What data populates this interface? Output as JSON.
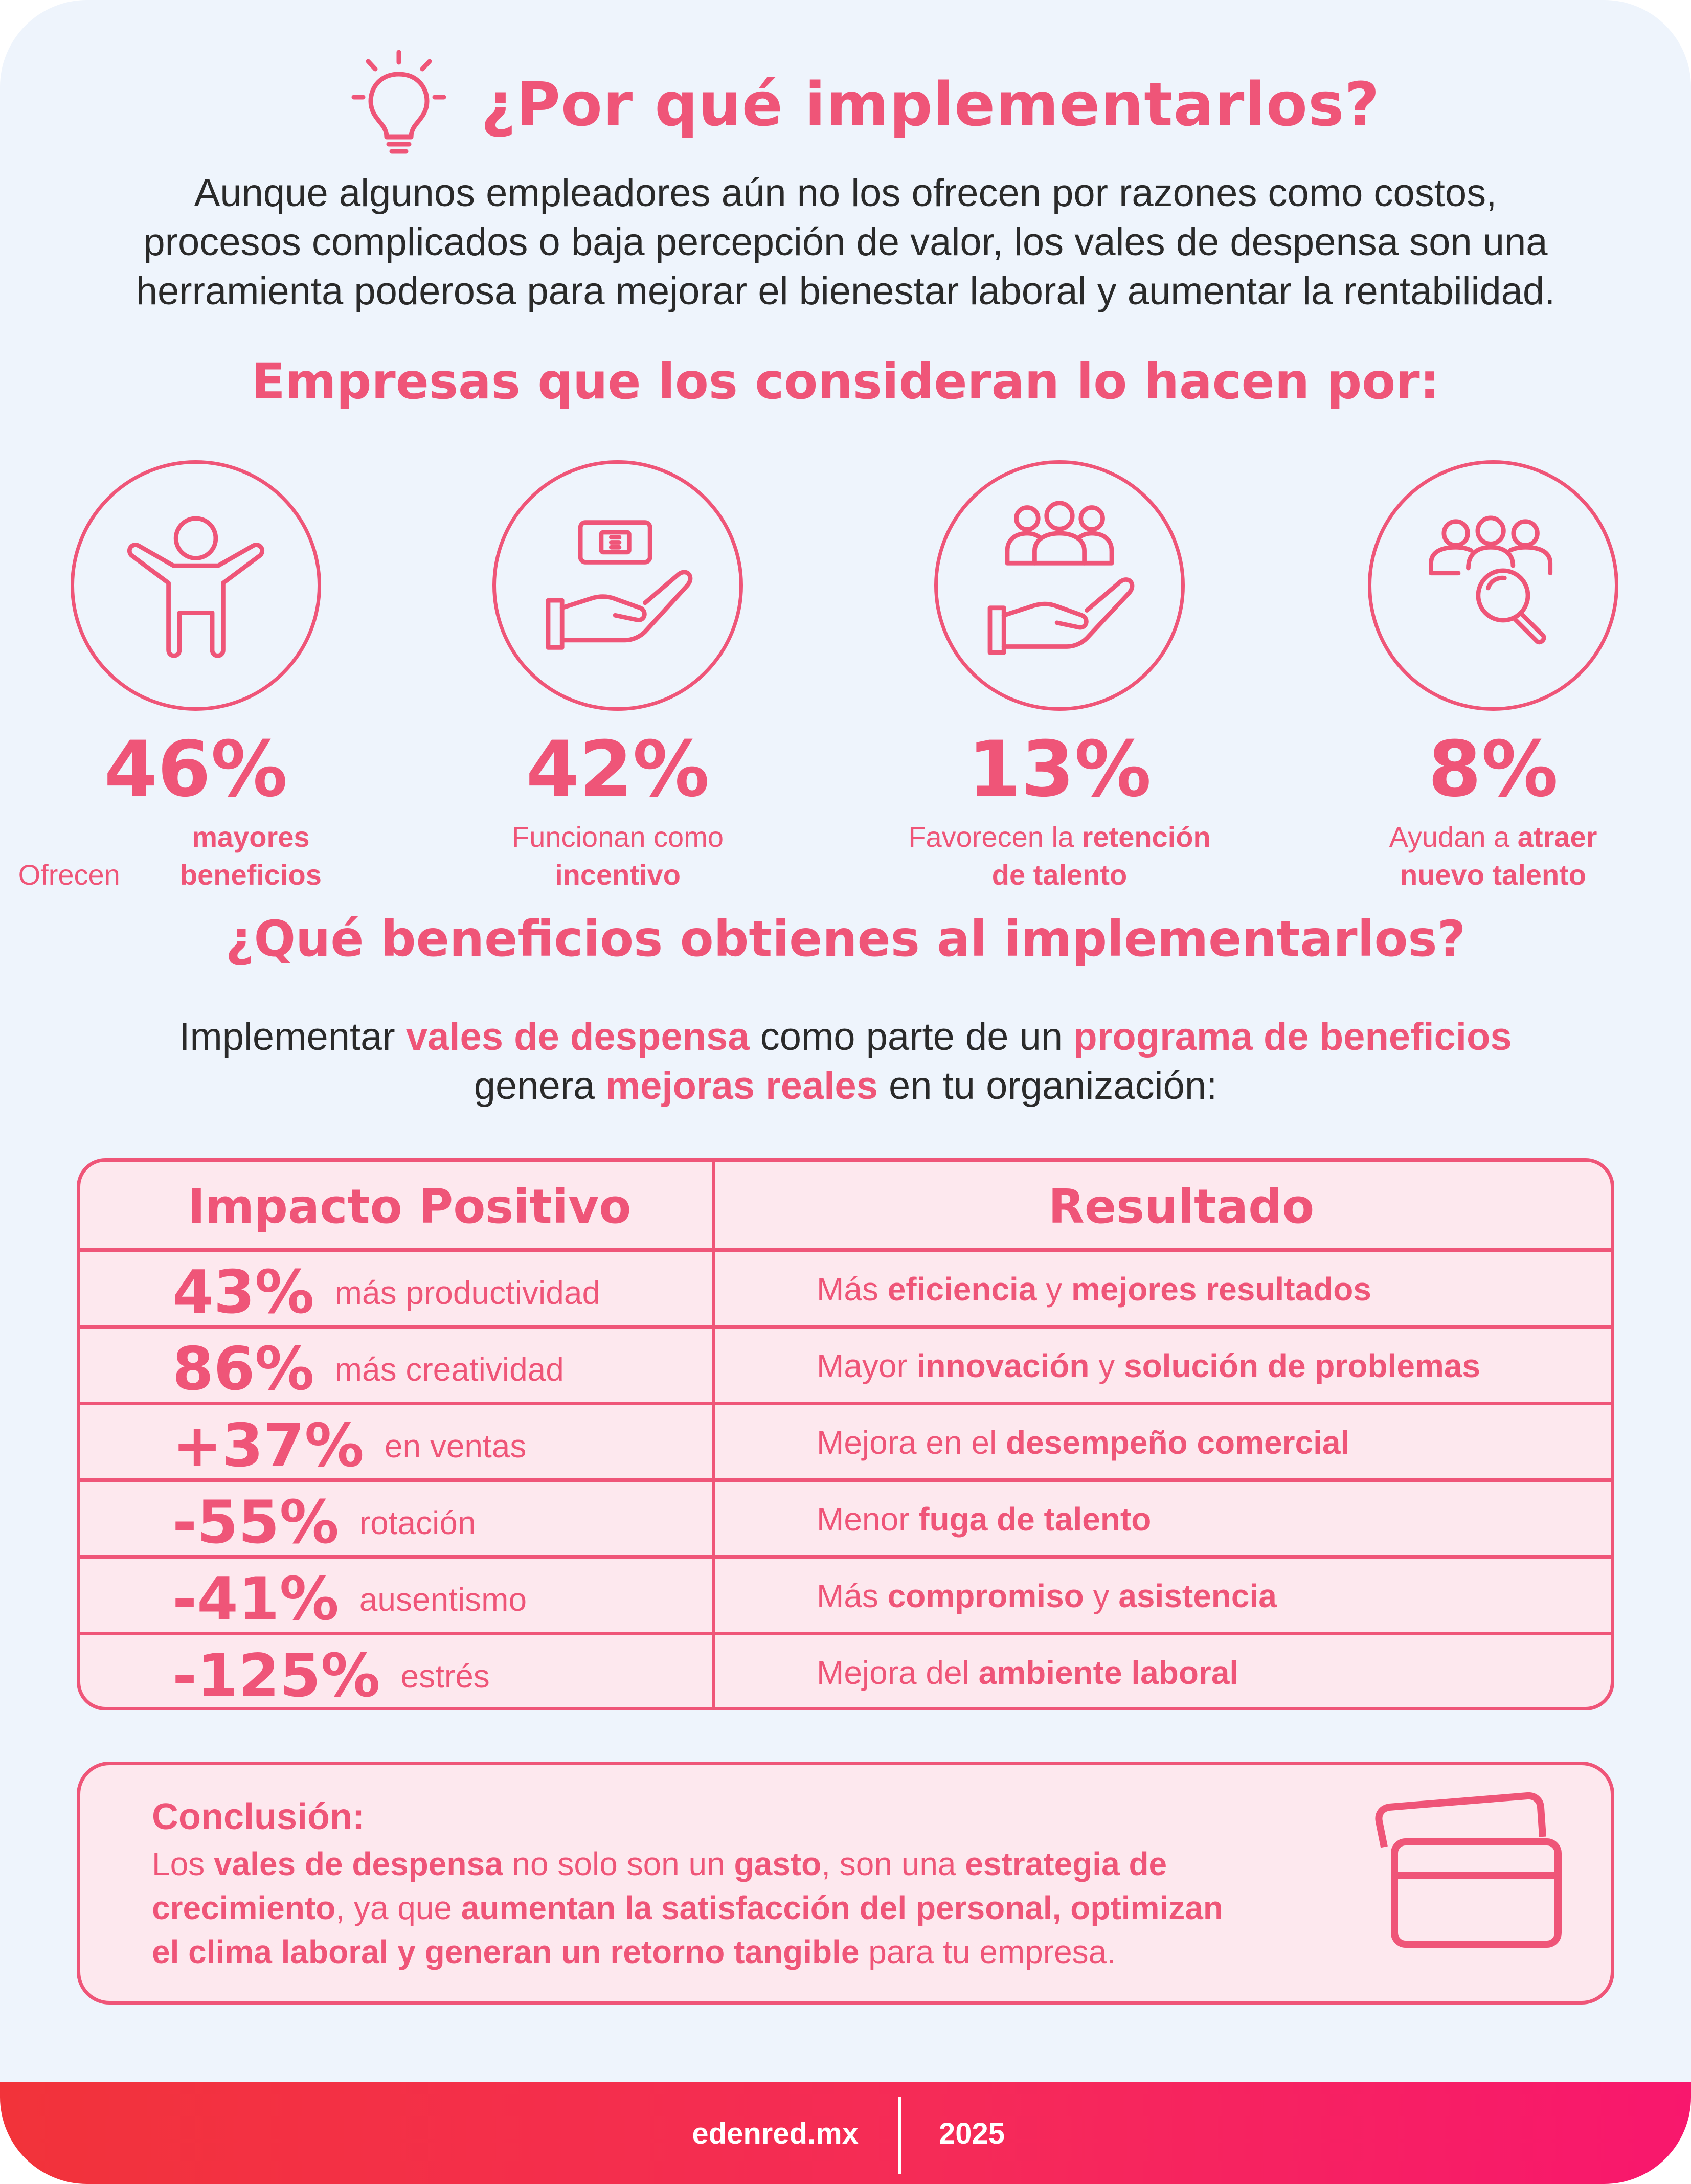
{
  "header": {
    "icon": "lightbulb-icon",
    "title": "¿Por qué implementarlos?",
    "intro": [
      "Aunque algunos empleadores aún no los ofrecen por razones como costos,",
      "procesos complicados o baja percepción de valor, los vales de despensa son una",
      "herramienta poderosa para mejorar el bienestar laboral y aumentar la rentabilidad."
    ]
  },
  "reasons": {
    "title": "Empresas que los consideran lo hacen por:",
    "items": [
      {
        "icon": "person-arms-open-icon",
        "value": "46%",
        "text": "Ofrecen ",
        "bold": "mayores beneficios",
        "line2": ""
      },
      {
        "icon": "hand-holding-card-icon",
        "value": "42%",
        "text": "Funcionan como",
        "bold": "incentivo",
        "line2": ""
      },
      {
        "icon": "hand-holding-people-icon",
        "value": "13%",
        "text": "Favorecen la ",
        "bold": "retención",
        "line2": "de talento"
      },
      {
        "icon": "people-search-icon",
        "value": "8%",
        "text": "Ayudan a ",
        "bold": "atraer",
        "line2": "nuevo talento"
      }
    ]
  },
  "benefits": {
    "title": "¿Qué beneficios obtienes al implementarlos?",
    "intro": {
      "p1": "Implementar ",
      "b1": "vales de despensa",
      "p2": " como parte de un ",
      "b2": "programa de beneficios",
      "p3": "genera ",
      "b3": "mejoras reales",
      "p4": " en tu organización:"
    }
  },
  "table": {
    "headers": [
      "Impacto Positivo",
      "Resultado"
    ],
    "rows": [
      {
        "value": "43%",
        "label": "más productividad",
        "r": [
          "Más ",
          "eficiencia",
          " y ",
          "mejores resultados"
        ]
      },
      {
        "value": "86%",
        "label": "más creatividad",
        "r": [
          "Mayor ",
          "innovación",
          " y ",
          "solución de problemas"
        ]
      },
      {
        "value": "+37%",
        "label": "en ventas",
        "r": [
          "Mejora en el ",
          "desempeño comercial",
          "",
          ""
        ]
      },
      {
        "value": "-55%",
        "label": "rotación",
        "r": [
          "Menor ",
          "fuga de talento",
          "",
          ""
        ]
      },
      {
        "value": "-41%",
        "label": "ausentismo",
        "r": [
          "Más ",
          "compromiso",
          " y ",
          "asistencia"
        ]
      },
      {
        "value": "-125%",
        "label": "estrés",
        "r": [
          "Mejora del ",
          "ambiente laboral",
          "",
          ""
        ]
      }
    ]
  },
  "conclusion": {
    "title": "Conclusión:",
    "icon": "cards-icon",
    "l1": [
      "Los ",
      "vales de despensa",
      " no solo son un ",
      "gasto",
      ", son una ",
      "estrategia de"
    ],
    "l2": [
      "crecimiento",
      ", ya que ",
      "aumentan la satisfacción del personal, optimizan"
    ],
    "l3": [
      "el clima laboral y generan un retorno tangible",
      " para tu empresa."
    ]
  },
  "footer": {
    "site": "edenred.mx",
    "year": "2025"
  },
  "colors": {
    "accent": "#ef5578",
    "background": "#eef4fc",
    "cell": "#fde8ee"
  }
}
